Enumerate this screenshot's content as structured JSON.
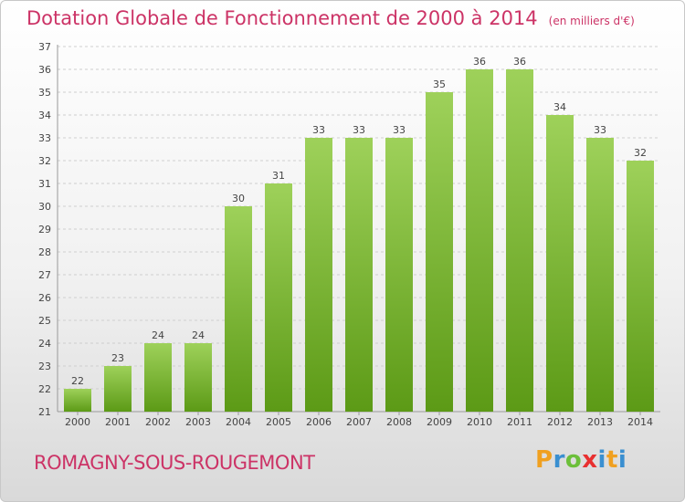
{
  "title": "Dotation Globale de Fonctionnement de 2000 à 2014",
  "unit": "(en milliers d'€)",
  "commune": "ROMAGNY-SOUS-ROUGEMONT",
  "logo": {
    "letters": [
      "P",
      "r",
      "o",
      "x",
      "i",
      "t",
      "i"
    ],
    "colors": [
      "#f0a020",
      "#3a8fd0",
      "#6cbf3a",
      "#e83030",
      "#3a8fd0",
      "#f0a020",
      "#3a8fd0"
    ]
  },
  "colors": {
    "title": "#cc3366",
    "bar_top": "#9ed15a",
    "bar_bottom": "#5c9a16"
  },
  "chart_data": {
    "type": "bar",
    "categories": [
      "2000",
      "2001",
      "2002",
      "2003",
      "2004",
      "2005",
      "2006",
      "2007",
      "2008",
      "2009",
      "2010",
      "2011",
      "2012",
      "2013",
      "2014"
    ],
    "values": [
      22,
      23,
      24,
      24,
      30,
      31,
      33,
      33,
      33,
      35,
      36,
      36,
      34,
      33,
      32
    ],
    "ylim": [
      21,
      37
    ],
    "yticks": [
      21,
      22,
      23,
      24,
      25,
      26,
      27,
      28,
      29,
      30,
      31,
      32,
      33,
      34,
      35,
      36,
      37
    ],
    "grid": true
  }
}
